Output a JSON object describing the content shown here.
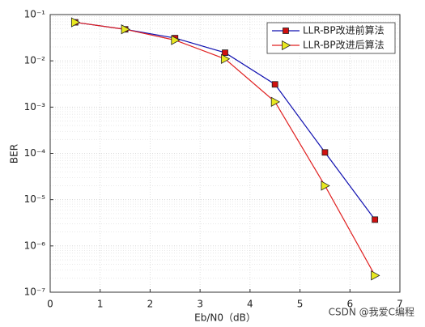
{
  "chart_data": {
    "type": "line",
    "x": [
      0.5,
      1.5,
      2.5,
      3.5,
      4.5,
      5.5,
      6.5
    ],
    "series": [
      {
        "name": "LLR-BP改进前算法",
        "color": "#1010b0",
        "marker": "square",
        "marker_color": "#d01010",
        "values": [
          0.068,
          0.048,
          0.031,
          0.015,
          0.0031,
          0.000105,
          3.7e-06
        ]
      },
      {
        "name": "LLR-BP改进后算法",
        "color": "#e02020",
        "marker": "triangle-right",
        "marker_color": "#e8e820",
        "values": [
          0.068,
          0.048,
          0.028,
          0.011,
          0.0013,
          2e-05,
          2.3e-07
        ]
      }
    ],
    "xlabel": "Eb/N0（dB）",
    "ylabel": "BER",
    "xlim": [
      0,
      7
    ],
    "xticks": [
      0,
      1,
      2,
      3,
      4,
      5,
      6,
      7
    ],
    "ylim": [
      1e-07,
      0.1
    ],
    "yscale": "log",
    "yticks": [
      {
        "value": 1e-07,
        "label": "10⁻⁷"
      },
      {
        "value": 1e-06,
        "label": "10⁻⁶"
      },
      {
        "value": 1e-05,
        "label": "10⁻⁵"
      },
      {
        "value": 0.0001,
        "label": "10⁻⁴"
      },
      {
        "value": 0.001,
        "label": "10⁻³"
      },
      {
        "value": 0.01,
        "label": "10⁻²"
      },
      {
        "value": 0.1,
        "label": "10⁻¹"
      }
    ],
    "grid": true,
    "minor_grid": true,
    "legend": "upper right",
    "watermark": "CSDN @我爱C编程"
  }
}
